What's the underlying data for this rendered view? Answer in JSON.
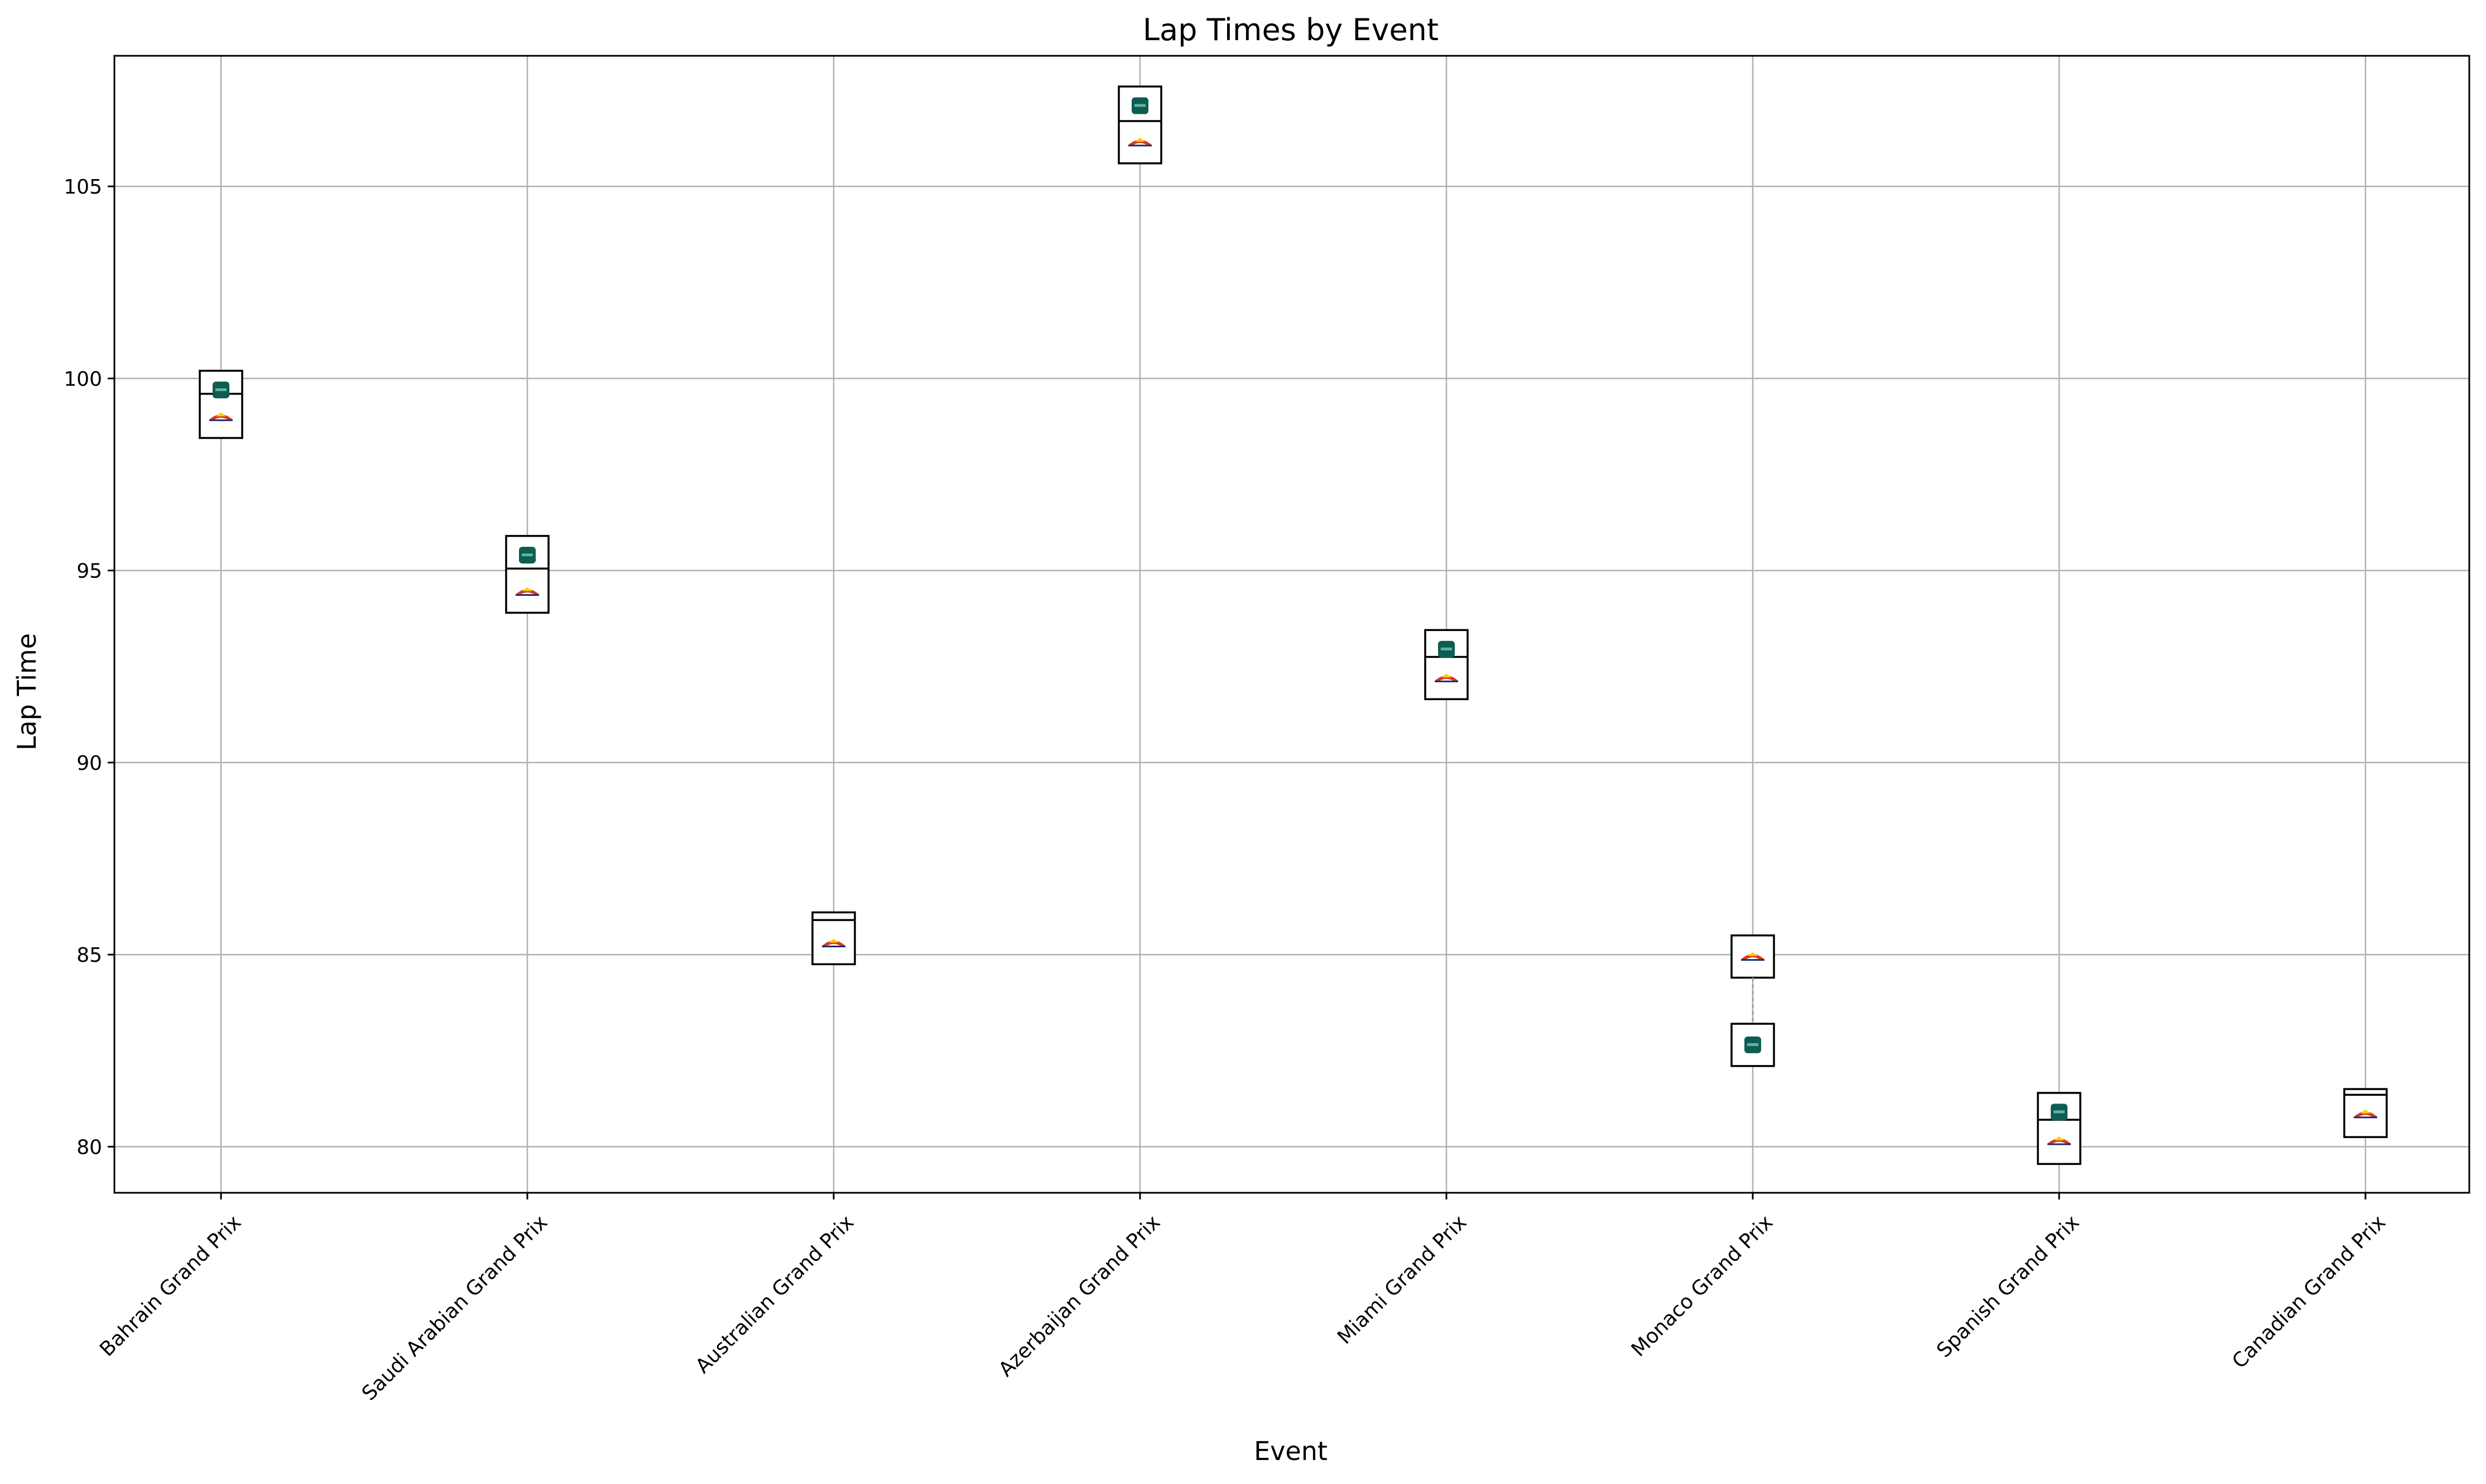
{
  "chart_data": {
    "type": "box",
    "title": "Lap Times by Event",
    "xlabel": "Event",
    "ylabel": "Lap Time",
    "ylim": [
      78.8,
      108.4
    ],
    "yticks": [
      80,
      85,
      90,
      95,
      100,
      105
    ],
    "grid": true,
    "categories": [
      "Bahrain Grand Prix",
      "Saudi Arabian Grand Prix",
      "Australian Grand Prix",
      "Azerbaijan Grand Prix",
      "Miami Grand Prix",
      "Monaco Grand Prix",
      "Spanish Grand Prix",
      "Canadian Grand Prix"
    ],
    "boxes": [
      {
        "q1": 98.45,
        "median": 99.6,
        "q3": 100.2
      },
      {
        "q1": 93.9,
        "median": 95.05,
        "q3": 95.9
      },
      {
        "q1": 84.75,
        "median": 85.9,
        "q3": 86.1
      },
      {
        "q1": 105.6,
        "median": 106.7,
        "q3": 107.6
      },
      {
        "q1": 91.65,
        "median": 92.75,
        "q3": 93.45
      },
      {
        "q1": 82.1,
        "median": 84.4,
        "q3": 85.5,
        "split": [
          83.2,
          84.4
        ]
      },
      {
        "q1": 79.55,
        "median": 80.7,
        "q3": 81.4
      },
      {
        "q1": 80.25,
        "median": 81.35,
        "q3": 81.5
      }
    ],
    "series": [
      {
        "marker": "car-green",
        "color": "#0e5c52",
        "values": [
          99.7,
          95.4,
          null,
          107.1,
          92.95,
          82.65,
          80.9,
          null
        ]
      },
      {
        "marker": "car-red",
        "color": "#d83a1e",
        "values": [
          99.0,
          94.45,
          85.3,
          106.15,
          92.2,
          84.95,
          80.15,
          80.85
        ]
      }
    ]
  }
}
